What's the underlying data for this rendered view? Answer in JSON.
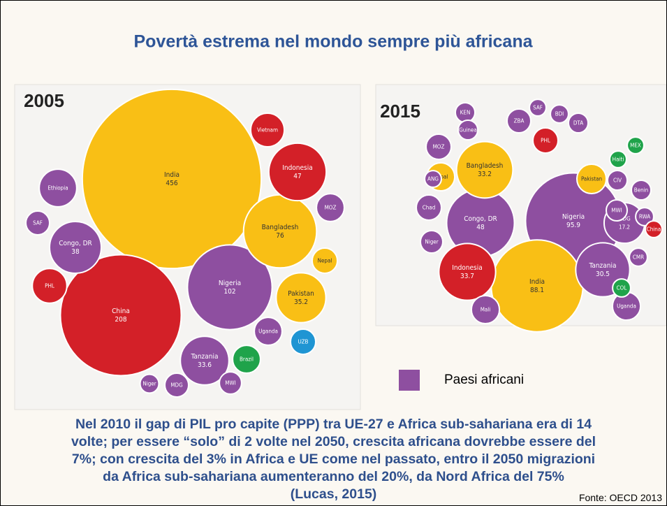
{
  "title": "Povertà estrema nel mondo sempre più africana",
  "legend": "Paesi africani",
  "legend_color": "#8e4fa0",
  "paragraph": [
    "Nel 2010 il gap di PIL pro capite (PPP) tra UE-27 e Africa sub-sahariana era di 14",
    "volte; per essere “solo” di 2 volte nel 2050, crescita africana dovrebbe essere del",
    "7%; con crescita del 3% in Africa e UE come nel passato, entro il 2050 migrazioni",
    "da Africa sub-sahariana aumenteranno del 20%, da Nord Africa del 75%",
    "(Lucas, 2015)"
  ],
  "source": "Fonte: OECD 2013",
  "chart_data": [
    {
      "type": "bubble",
      "title": "2005",
      "categories": [
        "India",
        "China",
        "Nigeria",
        "Bangladesh",
        "Indonesia",
        "Pakistan",
        "Tanzania",
        "Congo, DR",
        "Vietnam",
        "Ethiopia",
        "MOZ",
        "Nepal",
        "Uganda",
        "UZB",
        "Brazil",
        "MWI",
        "MDG",
        "Niger",
        "SAF",
        "PHL"
      ],
      "values": [
        456,
        208,
        102,
        76,
        47,
        35.2,
        33.6,
        38,
        16,
        20,
        11,
        9,
        11,
        9,
        11,
        7,
        8,
        5,
        8,
        17
      ],
      "value_labels": [
        "456",
        "208",
        "102",
        "76",
        "47",
        "35.2",
        "33.6",
        "38",
        null,
        null,
        null,
        null,
        null,
        null,
        null,
        null,
        null,
        null,
        null,
        null
      ],
      "colors": [
        "#f9bf15",
        "#d32028",
        "#8e4fa0",
        "#f9bf15",
        "#d32028",
        "#f9bf15",
        "#8e4fa0",
        "#8e4fa0",
        "#d32028",
        "#8e4fa0",
        "#8e4fa0",
        "#f9bf15",
        "#8e4fa0",
        "#1f95d3",
        "#1fa34a",
        "#8e4fa0",
        "#8e4fa0",
        "#8e4fa0",
        "#8e4fa0",
        "#d32028"
      ]
    },
    {
      "type": "bubble",
      "title": "2015",
      "categories": [
        "Nigeria",
        "India",
        "Congo, DR",
        "Indonesia",
        "Bangladesh",
        "Tanzania",
        "MDG",
        "PHL",
        "Pakistan",
        "Nepal",
        "Mali",
        "Uganda",
        "KEN",
        "ZBA",
        "SAF",
        "BDI",
        "DTA",
        "Guinea",
        "MOZ",
        "Haiti",
        "MEX",
        "CIV",
        "Benin",
        "MWI",
        "RWA",
        "China",
        "CMR",
        "COL",
        "ANG",
        "Chad",
        "Niger"
      ],
      "values": [
        95.9,
        88.1,
        48,
        33.7,
        33.2,
        30.5,
        17.2,
        6.6,
        9,
        8.2,
        8.2,
        8.2,
        4,
        5.9,
        2.9,
        3.4,
        4,
        4,
        6.6,
        2.9,
        2.9,
        4,
        4,
        4.6,
        3.4,
        2.9,
        3.4,
        3.4,
        2.9,
        6.6,
        5.2
      ],
      "value_labels": [
        "95.9",
        "88.1",
        "48",
        "33.7",
        "33.2",
        "30.5",
        "17.2",
        null,
        null,
        null,
        null,
        null,
        null,
        null,
        null,
        null,
        null,
        null,
        null,
        null,
        null,
        null,
        null,
        null,
        null,
        null,
        null,
        null,
        null,
        null,
        null
      ],
      "colors": [
        "#8e4fa0",
        "#f9bf15",
        "#8e4fa0",
        "#d32028",
        "#f9bf15",
        "#8e4fa0",
        "#8e4fa0",
        "#d32028",
        "#f9bf15",
        "#f9bf15",
        "#8e4fa0",
        "#8e4fa0",
        "#8e4fa0",
        "#8e4fa0",
        "#8e4fa0",
        "#8e4fa0",
        "#8e4fa0",
        "#8e4fa0",
        "#8e4fa0",
        "#1fa34a",
        "#1fa34a",
        "#8e4fa0",
        "#8e4fa0",
        "#8e4fa0",
        "#8e4fa0",
        "#d32028",
        "#8e4fa0",
        "#1fa34a",
        "#8e4fa0",
        "#8e4fa0",
        "#8e4fa0"
      ]
    }
  ]
}
